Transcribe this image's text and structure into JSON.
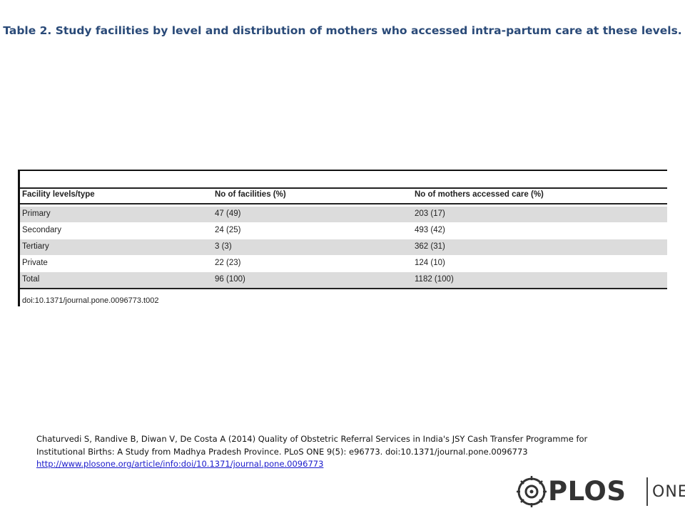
{
  "title": "Table 2. Study facilities by level and distribution of mothers who accessed intra-partum care at these levels.",
  "table": {
    "headers": [
      "Facility levels/type",
      "No of facilities (%)",
      "No of mothers accessed care (%)"
    ],
    "rows": [
      [
        "Primary",
        "47 (49)",
        "203 (17)"
      ],
      [
        "Secondary",
        "24 (25)",
        "493 (42)"
      ],
      [
        "Tertiary",
        "3 (3)",
        "362 (31)"
      ],
      [
        "Private",
        "22 (23)",
        "124 (10)"
      ],
      [
        "Total",
        "96 (100)",
        "1182 (100)"
      ]
    ],
    "doi": "doi:10.1371/journal.pone.0096773.t002"
  },
  "citation": {
    "line1": "Chaturvedi S, Randive B, Diwan V, De Costa A (2014) Quality of Obstetric Referral Services in India's JSY Cash Transfer Programme for",
    "line2": "Institutional Births: A Study from Madhya Pradesh Province. PLoS ONE 9(5): e96773. doi:10.1371/journal.pone.0096773",
    "url": "http://www.plosone.org/article/info:doi/10.1371/journal.pone.0096773"
  },
  "logo": {
    "icon": "plos-logo-icon",
    "name": "PLOS",
    "sub": "ONE"
  },
  "colors": {
    "title": "#2a4a78",
    "link": "#1a1acb",
    "shaded_row": "#dcdcdc"
  }
}
